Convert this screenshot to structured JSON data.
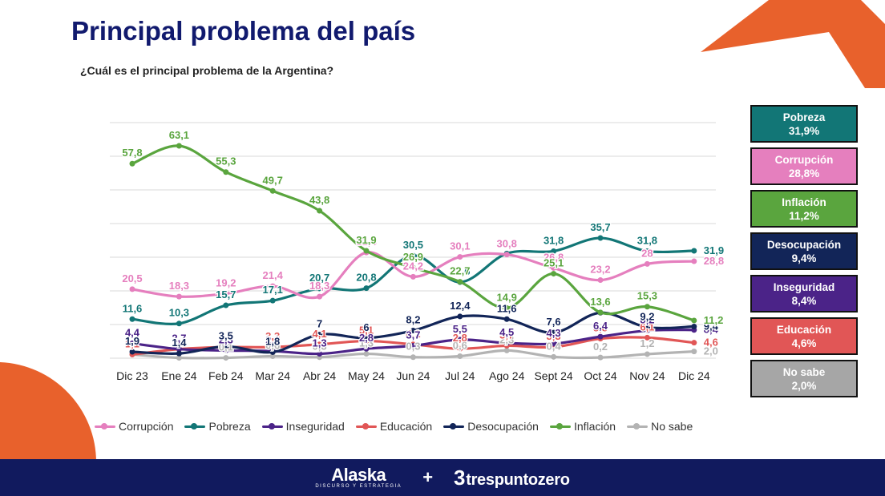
{
  "header": {
    "title": "Principal problema del país",
    "subtitle": "¿Cuál es el principal problema de la Argentina?"
  },
  "colors": {
    "navy": "#111a6e",
    "orange": "#e8612c",
    "footer": "#111a5e"
  },
  "chart_data": {
    "type": "line",
    "title": "",
    "ylim": [
      0,
      70
    ],
    "categories": [
      "Dic 23",
      "Ene 24",
      "Feb 24",
      "Mar 24",
      "Abr 24",
      "May 24",
      "Jun 24",
      "Jul 24",
      "Ago 24",
      "Sept 24",
      "Oct 24",
      "Nov 24",
      "Dic 24"
    ],
    "series": [
      {
        "name": "Corrupción",
        "color": "#e57fbe",
        "values": [
          20.5,
          18.3,
          19.2,
          21.4,
          18.3,
          31.4,
          24.2,
          30.1,
          30.8,
          26.8,
          23.2,
          28,
          28.8
        ],
        "labels": [
          "20,5",
          "18,3",
          "19,2",
          "21,4",
          "18,3",
          "31,4",
          "24,2",
          "30,1",
          "30,8",
          "26,8",
          "23,2",
          "28",
          "28,8"
        ]
      },
      {
        "name": "Pobreza",
        "color": "#127676",
        "values": [
          11.6,
          10.3,
          15.7,
          17.1,
          20.7,
          20.8,
          30.5,
          22.6,
          31.1,
          31.8,
          35.7,
          31.8,
          31.9
        ],
        "labels": [
          "11,6",
          "10,3",
          "15,7",
          "17,1",
          "20,7",
          "20,8",
          "30,5",
          "22,6",
          "31,1",
          "31,8",
          "35,7",
          "31,8",
          "31,9"
        ]
      },
      {
        "name": "Inseguridad",
        "color": "#4b2388",
        "values": [
          4.4,
          2.7,
          2.3,
          2.1,
          1.3,
          2.8,
          3.7,
          5.5,
          4.5,
          4.3,
          6.4,
          8.2,
          8.4
        ],
        "labels": [
          "4,4",
          "2,7",
          "2,3",
          "2,1",
          "1,3",
          "2,8",
          "3,7",
          "5,5",
          "4,5",
          "4,3",
          "6,4",
          "8,2",
          "8,4"
        ]
      },
      {
        "name": "Educación",
        "color": "#e15656",
        "values": [
          1.1,
          2.7,
          3.3,
          3.3,
          4.1,
          5.1,
          4.1,
          2.8,
          3.7,
          3.3,
          5.8,
          6.1,
          4.6
        ],
        "labels": [
          "1,1",
          "2,7",
          "3,3",
          "3,3",
          "4,1",
          "5,1",
          "4,1",
          "2,8",
          "3,7",
          "3,3",
          "5,8",
          "6,1",
          "4,6"
        ]
      },
      {
        "name": "Desocupación",
        "color": "#122558",
        "values": [
          1.9,
          1.4,
          3.5,
          1.8,
          7,
          6,
          8.2,
          12.4,
          11.6,
          7.6,
          13.5,
          9.2,
          9.4
        ],
        "labels": [
          "1,9",
          "1,4",
          "3,5",
          "1,8",
          "7",
          "6",
          "8,2",
          "12,4",
          "11,6",
          "7,6",
          "13,5",
          "9,2",
          "9,4"
        ]
      },
      {
        "name": "Inflación",
        "color": "#5aa53e",
        "values": [
          57.8,
          63.1,
          55.3,
          49.7,
          43.8,
          31.9,
          26.9,
          22.7,
          14.9,
          25.1,
          13.6,
          15.3,
          11.2
        ],
        "labels": [
          "57,8",
          "63,1",
          "55,3",
          "49,7",
          "43,8",
          "31,9",
          "26,9",
          "22,7",
          "14,9",
          "25,1",
          "13,6",
          "15,3",
          "11,2"
        ]
      },
      {
        "name": "No sabe",
        "color": "#b3b3b3",
        "values": [
          1.1,
          0.1,
          0.1,
          0.6,
          0.3,
          1.3,
          0.3,
          0.6,
          2.3,
          0.4,
          0.2,
          1.2,
          2.0
        ],
        "labels": [
          "",
          "",
          "0,1",
          "0,6",
          "0,3",
          "1,3",
          "0,3",
          "0,6",
          "2,3",
          "0,4",
          "0,2",
          "1,2",
          "2,0"
        ]
      }
    ]
  },
  "legend": [
    {
      "name": "Corrupción",
      "color": "#e57fbe"
    },
    {
      "name": "Pobreza",
      "color": "#127676"
    },
    {
      "name": "Inseguridad",
      "color": "#4b2388"
    },
    {
      "name": "Educación",
      "color": "#e15656"
    },
    {
      "name": "Desocupación",
      "color": "#122558"
    },
    {
      "name": "Inflación",
      "color": "#5aa53e"
    },
    {
      "name": "No sabe",
      "color": "#b3b3b3"
    }
  ],
  "value_boxes": [
    {
      "name": "Pobreza",
      "value": "31,9%",
      "bg": "#127676"
    },
    {
      "name": "Corrupción",
      "value": "28,8%",
      "bg": "#e57fbe"
    },
    {
      "name": "Inflación",
      "value": "11,2%",
      "bg": "#5aa53e"
    },
    {
      "name": "Desocupación",
      "value": "9,4%",
      "bg": "#122558"
    },
    {
      "name": "Inseguridad",
      "value": "8,4%",
      "bg": "#4b2388"
    },
    {
      "name": "Educación",
      "value": "4,6%",
      "bg": "#e15656"
    },
    {
      "name": "No sabe",
      "value": "2,0%",
      "bg": "#a6a6a6"
    }
  ],
  "footer": {
    "brand1": "Alaska",
    "brand1_tagline": "DISCURSO Y ESTRATEGIA",
    "plus": "+",
    "brand2_mark": "3",
    "brand2": "trespuntozero"
  }
}
